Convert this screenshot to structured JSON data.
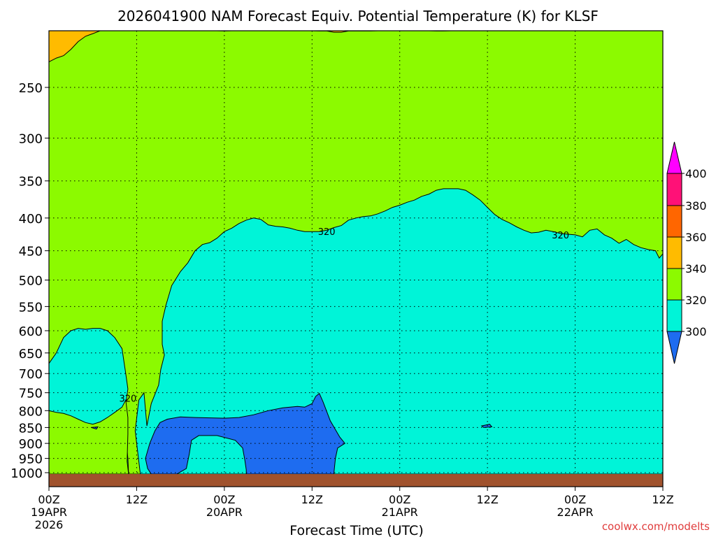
{
  "title": "2026041900 NAM Forecast Equiv. Potential Temperature (K) for KLSF",
  "xlabel": "Forecast Time (UTC)",
  "credit": "coolwx.com/modelts",
  "chart_data": {
    "type": "contour-filled",
    "title": "2026041900 NAM Forecast Equiv. Potential Temperature (K) for KLSF",
    "xlabel": "Forecast Time (UTC)",
    "ylabel": "",
    "x_range_hours": [
      0,
      84
    ],
    "y_axis": {
      "scale": "log-pressure",
      "range_hPa": [
        1050,
        200
      ],
      "reversed": true
    },
    "x_ticks": [
      {
        "hour": 0,
        "label": "00Z",
        "date": "19APR",
        "year": "2026"
      },
      {
        "hour": 12,
        "label": "12Z"
      },
      {
        "hour": 24,
        "label": "00Z",
        "date": "20APR"
      },
      {
        "hour": 36,
        "label": "12Z"
      },
      {
        "hour": 48,
        "label": "00Z",
        "date": "21APR"
      },
      {
        "hour": 60,
        "label": "12Z"
      },
      {
        "hour": 72,
        "label": "00Z",
        "date": "22APR"
      },
      {
        "hour": 84,
        "label": "12Z"
      }
    ],
    "y_ticks": [
      250,
      300,
      350,
      400,
      450,
      500,
      550,
      600,
      650,
      700,
      750,
      800,
      850,
      900,
      950,
      1000
    ],
    "grid": true,
    "contour_labels": [
      {
        "hour": 38.0,
        "p": 420,
        "text": "320"
      },
      {
        "hour": 70.0,
        "p": 425,
        "text": "320"
      },
      {
        "hour": 10.8,
        "p": 765,
        "text": "320"
      }
    ],
    "colorbar": {
      "labels": [
        "400",
        "380",
        "360",
        "340",
        "320",
        "300"
      ],
      "colors": {
        "below_300": "#1e6cf0",
        "300_320": "#00f4d8",
        "320_340": "#8cfa00",
        "340_360": "#ffbb00",
        "360_380": "#ff6600",
        "380_400": "#ff1177",
        "above_400": "#ff00ff"
      },
      "extend": "both"
    },
    "regions": {
      "upper_340_boundary": [
        [
          0,
          228
        ],
        [
          1,
          225
        ],
        [
          2,
          223
        ],
        [
          3,
          218
        ],
        [
          4,
          212
        ],
        [
          5,
          208
        ],
        [
          6,
          206
        ],
        [
          7,
          203
        ],
        [
          8,
          200
        ],
        [
          9,
          199
        ],
        [
          10,
          198
        ],
        [
          11,
          197
        ],
        [
          12,
          196
        ],
        [
          13,
          196
        ],
        [
          14,
          196
        ],
        [
          15,
          196
        ],
        [
          16,
          196
        ],
        [
          17,
          197
        ],
        [
          18,
          197
        ],
        [
          19,
          198
        ],
        [
          20,
          199
        ],
        [
          21,
          200
        ],
        [
          22,
          201
        ],
        [
          23,
          202
        ],
        [
          24,
          204
        ],
        [
          25,
          203
        ],
        [
          26,
          202
        ],
        [
          27,
          201
        ],
        [
          28,
          200
        ],
        [
          29,
          201
        ],
        [
          30,
          202
        ],
        [
          31,
          203
        ],
        [
          32,
          203
        ],
        [
          33,
          203
        ],
        [
          34,
          202
        ],
        [
          35,
          203
        ],
        [
          36,
          203
        ],
        [
          37,
          204
        ],
        [
          38,
          204
        ],
        [
          39,
          205
        ],
        [
          40,
          205
        ],
        [
          41,
          204
        ],
        [
          42,
          204
        ],
        [
          43,
          204
        ],
        [
          44,
          204
        ],
        [
          45,
          203
        ],
        [
          46,
          203
        ],
        [
          47,
          203
        ],
        [
          48,
          203
        ],
        [
          49,
          203
        ],
        [
          50,
          203
        ],
        [
          51,
          203
        ],
        [
          52,
          203
        ],
        [
          53,
          204
        ],
        [
          54,
          204
        ],
        [
          55,
          203
        ],
        [
          56,
          203
        ],
        [
          57,
          203
        ],
        [
          58,
          202
        ],
        [
          59,
          201
        ],
        [
          60,
          199
        ],
        [
          61,
          197
        ],
        [
          62,
          196
        ],
        [
          63,
          196
        ]
      ],
      "teal_boundary": [
        [
          0,
          675
        ],
        [
          1,
          650
        ],
        [
          2,
          615
        ],
        [
          3,
          600
        ],
        [
          4,
          595
        ],
        [
          5,
          597
        ],
        [
          6,
          595
        ],
        [
          7,
          595
        ],
        [
          8,
          600
        ],
        [
          9,
          615
        ],
        [
          10,
          640
        ],
        [
          10.5,
          700
        ],
        [
          10.8,
          740
        ],
        [
          10.6,
          768
        ],
        [
          10.2,
          790
        ],
        [
          10.5,
          830
        ],
        [
          10.6,
          900
        ],
        [
          10.8,
          950
        ],
        [
          10.9,
          1010
        ],
        [
          11.5,
          1010
        ],
        [
          12.5,
          1010
        ],
        [
          11.8,
          860
        ],
        [
          12.3,
          770
        ],
        [
          13.0,
          750
        ],
        [
          13.4,
          845
        ],
        [
          14.0,
          780
        ],
        [
          15.0,
          730
        ],
        [
          15.3,
          690
        ],
        [
          15.8,
          655
        ],
        [
          15.5,
          630
        ],
        [
          15.5,
          580
        ],
        [
          16.0,
          548
        ],
        [
          16.8,
          510
        ],
        [
          18,
          485
        ],
        [
          19,
          470
        ],
        [
          20,
          450
        ],
        [
          21,
          440
        ],
        [
          22,
          437
        ],
        [
          23,
          430
        ],
        [
          24,
          420
        ],
        [
          25,
          415
        ],
        [
          26,
          408
        ],
        [
          27,
          403
        ],
        [
          28,
          400
        ],
        [
          29,
          402
        ],
        [
          30,
          410
        ],
        [
          31,
          412
        ],
        [
          32,
          413
        ],
        [
          33,
          415
        ],
        [
          34,
          418
        ],
        [
          35,
          420
        ],
        [
          36,
          420
        ],
        [
          37,
          420
        ],
        [
          38,
          418
        ],
        [
          39,
          414
        ],
        [
          40,
          411
        ],
        [
          41,
          403
        ],
        [
          42,
          400
        ],
        [
          43,
          398
        ],
        [
          44,
          397
        ],
        [
          45,
          394
        ],
        [
          46,
          390
        ],
        [
          47,
          385
        ],
        [
          48,
          382
        ],
        [
          49,
          378
        ],
        [
          50,
          375
        ],
        [
          51,
          370
        ],
        [
          52,
          367
        ],
        [
          53,
          362
        ],
        [
          54,
          360
        ],
        [
          55,
          360
        ],
        [
          56,
          360
        ],
        [
          57,
          362
        ],
        [
          58,
          368
        ],
        [
          59,
          375
        ],
        [
          60,
          385
        ],
        [
          61,
          395
        ],
        [
          62,
          402
        ],
        [
          63,
          407
        ],
        [
          64,
          413
        ],
        [
          65,
          418
        ],
        [
          66,
          422
        ],
        [
          67,
          421
        ],
        [
          68,
          418
        ],
        [
          69,
          420
        ],
        [
          70,
          423
        ],
        [
          71,
          424
        ],
        [
          72,
          425
        ],
        [
          73,
          428
        ],
        [
          74,
          418
        ],
        [
          75,
          416
        ],
        [
          76,
          425
        ],
        [
          77,
          430
        ],
        [
          78,
          438
        ],
        [
          79,
          432
        ],
        [
          80,
          440
        ],
        [
          81,
          445
        ],
        [
          82,
          448
        ],
        [
          83,
          450
        ],
        [
          83.5,
          462
        ],
        [
          84,
          455
        ]
      ],
      "lower_left_340": [
        [
          0,
          1050
        ],
        [
          0,
          800
        ],
        [
          1,
          805
        ],
        [
          2,
          808
        ],
        [
          3,
          815
        ],
        [
          4,
          825
        ],
        [
          5,
          835
        ],
        [
          6,
          840
        ],
        [
          7,
          833
        ],
        [
          8,
          820
        ],
        [
          9,
          805
        ],
        [
          10,
          790
        ],
        [
          10.5,
          770
        ],
        [
          10.8,
          820
        ],
        [
          10.8,
          870
        ],
        [
          10.7,
          960
        ],
        [
          10.9,
          1050
        ]
      ],
      "blue_pool": [
        [
          14.0,
          1015
        ],
        [
          13.5,
          985
        ],
        [
          13.2,
          950
        ],
        [
          13.8,
          900
        ],
        [
          14.5,
          860
        ],
        [
          15.2,
          835
        ],
        [
          16.2,
          825
        ],
        [
          18,
          818
        ],
        [
          20,
          820
        ],
        [
          24,
          822
        ],
        [
          26,
          820
        ],
        [
          28,
          812
        ],
        [
          30,
          800
        ],
        [
          32,
          792
        ],
        [
          33,
          790
        ],
        [
          34,
          788
        ],
        [
          35,
          790
        ],
        [
          36,
          780
        ],
        [
          36.5,
          760
        ],
        [
          37.0,
          752
        ],
        [
          37.5,
          775
        ],
        [
          38.5,
          830
        ],
        [
          39.8,
          880
        ],
        [
          40.5,
          900
        ],
        [
          39.5,
          915
        ],
        [
          39.2,
          950
        ],
        [
          39.0,
          1000
        ],
        [
          39.0,
          1015
        ],
        [
          27,
          1015
        ],
        [
          27.0,
          990
        ],
        [
          26.8,
          955
        ],
        [
          26.5,
          915
        ],
        [
          25.5,
          890
        ],
        [
          23,
          875
        ],
        [
          20.5,
          875
        ],
        [
          19.5,
          890
        ],
        [
          19.2,
          935
        ],
        [
          18.8,
          985
        ],
        [
          17.5,
          1010
        ],
        [
          16,
          1013
        ]
      ],
      "small_blue_islands": [
        [
          [
            59.2,
            845
          ],
          [
            60.3,
            840
          ],
          [
            60.6,
            848
          ],
          [
            59.5,
            850
          ]
        ],
        [
          [
            5.8,
            850
          ],
          [
            6.7,
            848
          ],
          [
            6.5,
            855
          ]
        ]
      ]
    }
  }
}
